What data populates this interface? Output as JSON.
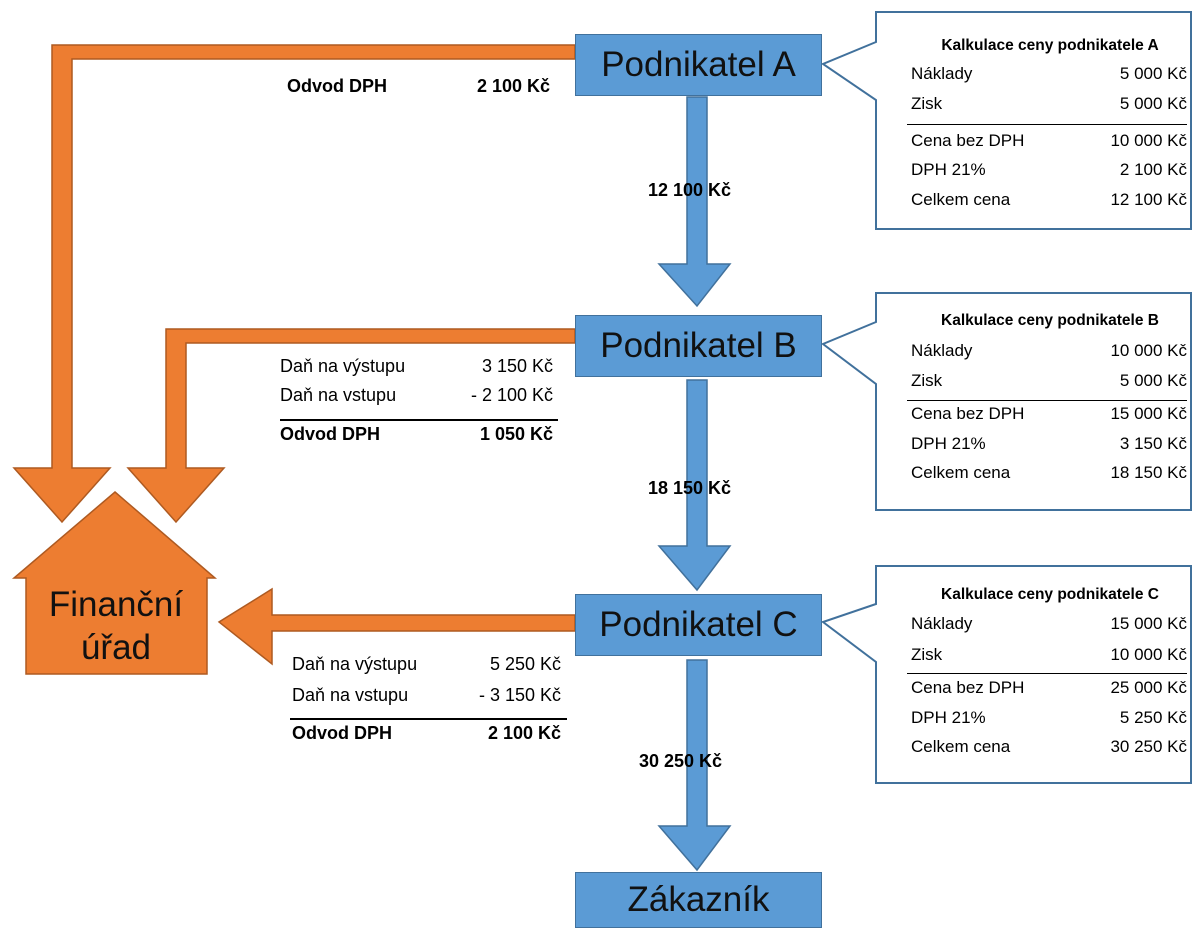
{
  "entities": {
    "a": "Podnikatel A",
    "b": "Podnikatel B",
    "c": "Podnikatel C",
    "customer": "Zákazník",
    "office_line1": "Finanční",
    "office_line2": "úřad"
  },
  "flows": {
    "a_to_b": "12 100 Kč",
    "b_to_c": "18 150 Kč",
    "c_to_customer": "30 250 Kč"
  },
  "vat_a": {
    "label": "Odvod DPH",
    "value": "2 100 Kč"
  },
  "vat_b": {
    "output_label": "Daň na výstupu",
    "output_value": "3 150 Kč",
    "input_label": "Daň na vstupu",
    "input_value": "-  2 100 Kč",
    "total_label": "Odvod DPH",
    "total_value": "1 050 Kč"
  },
  "vat_c": {
    "output_label": "Daň na výstupu",
    "output_value": "5 250 Kč",
    "input_label": "Daň na vstupu",
    "input_value": "-  3 150 Kč",
    "total_label": "Odvod DPH",
    "total_value": "2 100 Kč"
  },
  "calc_a": {
    "title": "Kalkulace ceny podnikatele A",
    "rows": [
      {
        "label": "Náklady",
        "value": "5 000 Kč"
      },
      {
        "label": "Zisk",
        "value": "5 000 Kč"
      },
      {
        "label": "Cena bez DPH",
        "value": "10 000 Kč"
      },
      {
        "label": "DPH 21%",
        "value": "2 100 Kč"
      },
      {
        "label": "Celkem cena",
        "value": "12 100 Kč"
      }
    ]
  },
  "calc_b": {
    "title": "Kalkulace ceny podnikatele B",
    "rows": [
      {
        "label": "Náklady",
        "value": "10 000 Kč"
      },
      {
        "label": "Zisk",
        "value": "5 000 Kč"
      },
      {
        "label": "Cena bez DPH",
        "value": "15 000 Kč"
      },
      {
        "label": "DPH 21%",
        "value": "3 150 Kč"
      },
      {
        "label": "Celkem cena",
        "value": "18 150 Kč"
      }
    ]
  },
  "calc_c": {
    "title": "Kalkulace ceny podnikatele C",
    "rows": [
      {
        "label": "Náklady",
        "value": "15 000 Kč"
      },
      {
        "label": "Zisk",
        "value": "10 000 Kč"
      },
      {
        "label": "Cena bez DPH",
        "value": "25 000 Kč"
      },
      {
        "label": "DPH 21%",
        "value": "5 250 Kč"
      },
      {
        "label": "Celkem cena",
        "value": "30 250 Kč"
      }
    ]
  },
  "colors": {
    "blue_fill": "#5b9bd5",
    "blue_border": "#41719c",
    "orange_fill": "#ed7d31",
    "orange_border": "#ae5a21",
    "callout_border": "#41719c"
  }
}
